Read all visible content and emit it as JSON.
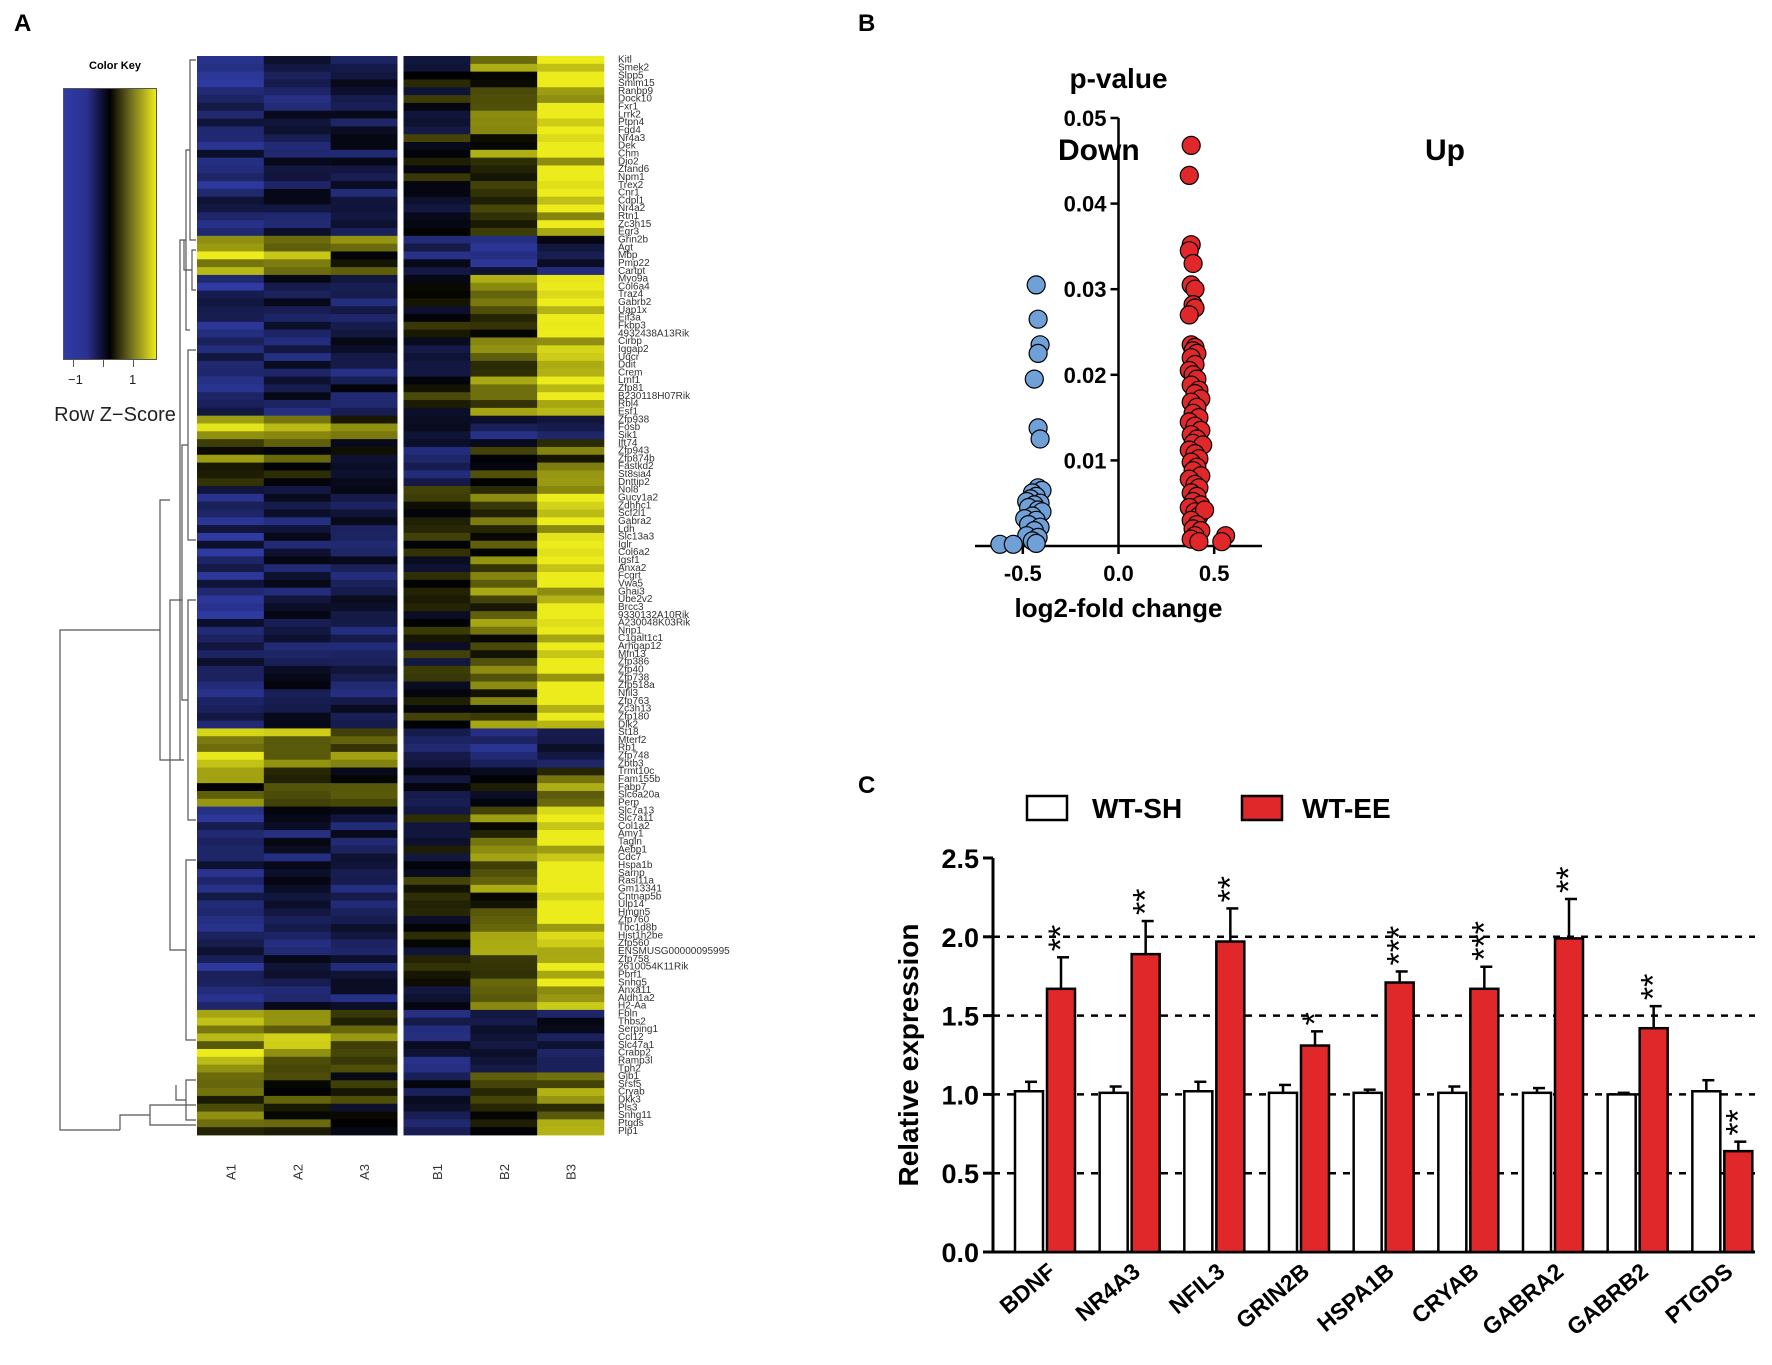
{
  "panels": {
    "a": "A",
    "b": "B",
    "c": "C"
  },
  "color_key": {
    "title": "Color Key",
    "tick_labels": [
      "−1",
      "1"
    ],
    "label": "Row Z−Score",
    "colors": {
      "low": "#2f3ba3",
      "mid": "#000000",
      "high": "#ecec1c"
    }
  },
  "chart_data": [
    {
      "type": "heatmap",
      "title": "",
      "columns": [
        "A1",
        "A2",
        "A3",
        "B1",
        "B2",
        "B3"
      ],
      "row_labels": [
        "Kitl",
        "Smek2",
        "Slpp5",
        "Smim15",
        "Ranbp9",
        "Dock10",
        "Fxr1",
        "Lrrk2",
        "Ptpn4",
        "Fgd4",
        "Nr4a3",
        "Dek",
        "Chm",
        "Dio2",
        "Zfand6",
        "Npm1",
        "Trex2",
        "Cnr1",
        "Cdpl1",
        "Nr4a2",
        "Rtn1",
        "Zc3h15",
        "Egr3",
        "Grin2b",
        "Agt",
        "Mbp",
        "Pmp22",
        "Cartpt",
        "Myo9a",
        "Col6a4",
        "Traz4",
        "Gabrb2",
        "Uap1x",
        "Eif3a",
        "Fkbp3",
        "4932438A13Rik",
        "Cirbp",
        "Iqgap2",
        "Uqcr",
        "Ddit",
        "Crem",
        "Lmf1",
        "Zfp81",
        "B230118H07Rik",
        "Rbl4",
        "Esf1",
        "Zfp938",
        "Fosb",
        "Sik1",
        "Ift74",
        "Zfp943",
        "Zfp874b",
        "Fastkd2",
        "St8sia4",
        "Dnttip2",
        "Nol8",
        "Gucy1a2",
        "Zdhhc1",
        "Scf2l1",
        "Gabra2",
        "Ldh",
        "Slc13a3",
        "Iglr",
        "Col6a2",
        "Igsf1",
        "Anxa2",
        "Fcgrt",
        "Vwa5",
        "Ghai3",
        "Ube2v2",
        "Brcc3",
        "9330132A10Rik",
        "A230048K03Rik",
        "Nrip1",
        "C1galt1c1",
        "Arhgap12",
        "Mfn13",
        "Zfp386",
        "Zfp40",
        "Zfp738",
        "Zfp518a",
        "Nfil3",
        "Zfp763",
        "Zc3h13",
        "Zfp180",
        "Dlk2",
        "St18",
        "Mterf2",
        "Rb1",
        "Zfp748",
        "Zbtb3",
        "Trmt10c",
        "Fam155b",
        "Fabp7",
        "Slc6a20a",
        "Perp",
        "Slc7a13",
        "Slc7a11",
        "Col1a2",
        "Amy1",
        "Tagln",
        "Aebp1",
        "Cdc7",
        "Hspa1b",
        "Sarnp",
        "Rasl11a",
        "Gm13341",
        "Cntnap5b",
        "Ulp14",
        "Hmgn5",
        "Zfp760",
        "Tbc1d8b",
        "Hist1h2be",
        "Zfp560",
        "ENSMUSG00000095995",
        "Zfp758",
        "2610054K11Rik",
        "Pbrf1",
        "Snhg5",
        "Anxa11",
        "Aldh1a2",
        "H2-Aa",
        "Fbln",
        "Thbs2",
        "Serping1",
        "Ccl12",
        "Slc47a1",
        "Crabp2",
        "Ramp3l",
        "Tph2",
        "Gjb1",
        "Srsf5",
        "Cryab",
        "Dkk3",
        "Pls3",
        "Snhg11",
        "Ptgds",
        "Plp1"
      ],
      "colors": {
        "low": "#2f3ba3",
        "mid": "#000000",
        "high": "#ecec1c"
      }
    },
    {
      "type": "scatter",
      "title": "p-value",
      "xlabel": "log2-fold change",
      "ylabel": "",
      "xlim": [
        -0.75,
        0.75
      ],
      "ylim": [
        0,
        0.05
      ],
      "xticks": [
        -0.5,
        0.0,
        0.5
      ],
      "xtick_labels": [
        "-0.5",
        "0.0",
        "0.5"
      ],
      "yticks": [
        0.01,
        0.02,
        0.03,
        0.04,
        0.05
      ],
      "ytick_labels": [
        "0.01",
        "0.02",
        "0.03",
        "0.04",
        "0.05"
      ],
      "annotations": {
        "left": "Down",
        "right": "Up"
      },
      "series": [
        {
          "name": "Down",
          "color": "#6fa0d8",
          "points": [
            [
              -0.43,
              0.0305
            ],
            [
              -0.42,
              0.0265
            ],
            [
              -0.41,
              0.0235
            ],
            [
              -0.42,
              0.0225
            ],
            [
              -0.44,
              0.0195
            ],
            [
              -0.42,
              0.0138
            ],
            [
              -0.41,
              0.0125
            ],
            [
              -0.42,
              0.0068
            ],
            [
              -0.4,
              0.0065
            ],
            [
              -0.45,
              0.0062
            ],
            [
              -0.43,
              0.0058
            ],
            [
              -0.46,
              0.0055
            ],
            [
              -0.48,
              0.0052
            ],
            [
              -0.41,
              0.005
            ],
            [
              -0.44,
              0.0048
            ],
            [
              -0.47,
              0.0045
            ],
            [
              -0.42,
              0.0042
            ],
            [
              -0.4,
              0.004
            ],
            [
              -0.45,
              0.0035
            ],
            [
              -0.49,
              0.0032
            ],
            [
              -0.43,
              0.003
            ],
            [
              -0.47,
              0.0025
            ],
            [
              -0.41,
              0.0022
            ],
            [
              -0.44,
              0.0018
            ],
            [
              -0.48,
              0.0012
            ],
            [
              -0.42,
              0.001
            ],
            [
              -0.45,
              0.0006
            ],
            [
              -0.43,
              0.0003
            ],
            [
              -0.62,
              0.0002
            ],
            [
              -0.55,
              0.0002
            ]
          ]
        },
        {
          "name": "Up",
          "color": "#e0282a",
          "points": [
            [
              0.38,
              0.0468
            ],
            [
              0.37,
              0.0433
            ],
            [
              0.38,
              0.0352
            ],
            [
              0.37,
              0.0345
            ],
            [
              0.39,
              0.033
            ],
            [
              0.38,
              0.0305
            ],
            [
              0.4,
              0.03
            ],
            [
              0.39,
              0.0282
            ],
            [
              0.4,
              0.0278
            ],
            [
              0.37,
              0.027
            ],
            [
              0.38,
              0.0235
            ],
            [
              0.4,
              0.0232
            ],
            [
              0.39,
              0.0228
            ],
            [
              0.41,
              0.0225
            ],
            [
              0.38,
              0.022
            ],
            [
              0.4,
              0.0212
            ],
            [
              0.37,
              0.0205
            ],
            [
              0.39,
              0.02
            ],
            [
              0.41,
              0.0195
            ],
            [
              0.38,
              0.0188
            ],
            [
              0.42,
              0.0182
            ],
            [
              0.4,
              0.0178
            ],
            [
              0.43,
              0.0172
            ],
            [
              0.38,
              0.0168
            ],
            [
              0.41,
              0.0162
            ],
            [
              0.39,
              0.0155
            ],
            [
              0.42,
              0.015
            ],
            [
              0.37,
              0.0145
            ],
            [
              0.4,
              0.014
            ],
            [
              0.43,
              0.0135
            ],
            [
              0.38,
              0.013
            ],
            [
              0.41,
              0.0125
            ],
            [
              0.39,
              0.012
            ],
            [
              0.44,
              0.0118
            ],
            [
              0.37,
              0.0112
            ],
            [
              0.4,
              0.0108
            ],
            [
              0.42,
              0.0102
            ],
            [
              0.38,
              0.0098
            ],
            [
              0.41,
              0.0092
            ],
            [
              0.39,
              0.0088
            ],
            [
              0.43,
              0.0082
            ],
            [
              0.37,
              0.0078
            ],
            [
              0.4,
              0.0072
            ],
            [
              0.42,
              0.0068
            ],
            [
              0.38,
              0.0062
            ],
            [
              0.41,
              0.0058
            ],
            [
              0.39,
              0.0052
            ],
            [
              0.43,
              0.0048
            ],
            [
              0.37,
              0.0045
            ],
            [
              0.4,
              0.004
            ],
            [
              0.42,
              0.0035
            ],
            [
              0.45,
              0.0042
            ],
            [
              0.38,
              0.003
            ],
            [
              0.41,
              0.0025
            ],
            [
              0.39,
              0.002
            ],
            [
              0.43,
              0.0018
            ],
            [
              0.4,
              0.0012
            ],
            [
              0.38,
              0.0008
            ],
            [
              0.56,
              0.0012
            ],
            [
              0.54,
              0.0005
            ],
            [
              0.42,
              0.0005
            ]
          ]
        }
      ]
    },
    {
      "type": "bar",
      "title": "",
      "xlabel": "",
      "ylabel": "Relative expression",
      "ylim": [
        0,
        2.5
      ],
      "yticks": [
        0.0,
        0.5,
        1.0,
        1.5,
        2.0,
        2.5
      ],
      "ytick_labels": [
        "0.0",
        "0.5",
        "1.0",
        "1.5",
        "2.0",
        "2.5"
      ],
      "reference_lines": [
        0.5,
        1.0,
        1.5,
        2.0
      ],
      "categories": [
        "BDNF",
        "NR4A3",
        "NFIL3",
        "GRIN2B",
        "HSPA1B",
        "CRYAB",
        "GABRA2",
        "GABRB2",
        "PTGDS"
      ],
      "series": [
        {
          "name": "WT-SH",
          "color": "#ffffff",
          "values": [
            1.02,
            1.01,
            1.02,
            1.01,
            1.01,
            1.01,
            1.01,
            1.0,
            1.02
          ],
          "errors": [
            0.06,
            0.04,
            0.06,
            0.05,
            0.02,
            0.04,
            0.03,
            0.01,
            0.07
          ]
        },
        {
          "name": "WT-EE",
          "color": "#e0282a",
          "values": [
            1.67,
            1.89,
            1.97,
            1.31,
            1.71,
            1.67,
            1.99,
            1.42,
            0.64
          ],
          "errors": [
            0.2,
            0.21,
            0.21,
            0.09,
            0.07,
            0.14,
            0.25,
            0.14,
            0.06
          ],
          "significance": [
            "**",
            "**",
            "**",
            "*",
            "***",
            "***",
            "**",
            "**",
            "**"
          ]
        }
      ]
    }
  ]
}
